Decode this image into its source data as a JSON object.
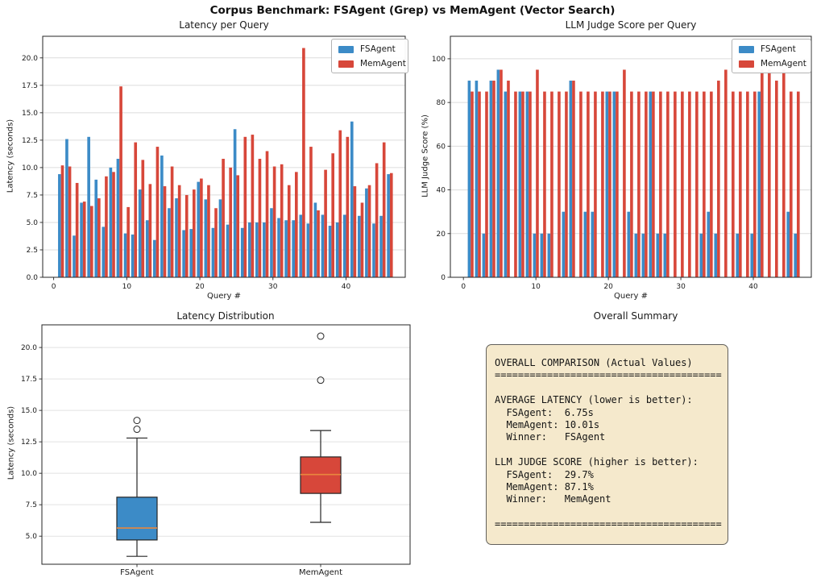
{
  "suptitle": "Corpus Benchmark: FSAgent (Grep) vs MemAgent (Vector Search)",
  "colors": {
    "fsagent": "#3c8bc7",
    "memagent": "#d7473a",
    "median_line": "#e8873d",
    "grid": "#dcdcdc",
    "spine": "#262626",
    "summary_bg": "#f5e9cc",
    "summary_border": "#62605c"
  },
  "legend": {
    "fsagent": "FSAgent",
    "memagent": "MemAgent"
  },
  "chart_data": [
    {
      "id": "latency-per-query",
      "type": "bar",
      "title": "Latency per Query",
      "xlabel": "Query #",
      "ylabel": "Latency (seconds)",
      "ylim": [
        0,
        21.97
      ],
      "yticks": [
        0,
        2.5,
        5,
        7.5,
        10,
        12.5,
        15,
        17.5,
        20
      ],
      "ytick_labels": [
        "0.0",
        "2.5",
        "5.0",
        "7.5",
        "10.0",
        "12.5",
        "15.0",
        "17.5",
        "20.0"
      ],
      "xticks": [
        0,
        10,
        20,
        30,
        40
      ],
      "xtick_labels": [
        "0",
        "10",
        "20",
        "30",
        "40"
      ],
      "x_start": 1,
      "grid": true,
      "legend_position": "upper right",
      "series": [
        {
          "name": "FSAgent",
          "color": "#3c8bc7",
          "values": [
            9.4,
            12.6,
            3.8,
            6.8,
            12.8,
            8.9,
            4.6,
            10.0,
            10.8,
            4.0,
            3.9,
            8.0,
            5.2,
            3.4,
            11.1,
            6.3,
            7.2,
            4.3,
            4.4,
            8.7,
            7.1,
            4.5,
            7.1,
            4.8,
            13.5,
            4.5,
            5.0,
            5.0,
            5.0,
            6.3,
            5.4,
            5.2,
            5.2,
            5.7,
            4.9,
            6.8,
            5.7,
            4.7,
            5.0,
            5.7,
            14.2,
            5.6,
            8.1,
            4.9,
            5.6,
            9.4
          ]
        },
        {
          "name": "MemAgent",
          "color": "#d7473a",
          "values": [
            10.2,
            10.1,
            8.6,
            6.9,
            6.5,
            7.2,
            9.2,
            9.6,
            17.4,
            6.4,
            12.3,
            10.7,
            8.5,
            11.9,
            8.3,
            10.1,
            8.4,
            7.5,
            8.0,
            9.0,
            8.4,
            6.3,
            10.8,
            10.0,
            9.3,
            12.8,
            13.0,
            10.8,
            11.5,
            10.1,
            10.3,
            8.4,
            9.6,
            20.9,
            11.9,
            6.1,
            9.8,
            11.3,
            13.4,
            12.8,
            8.3,
            6.8,
            8.4,
            10.4,
            12.3,
            9.5
          ]
        }
      ]
    },
    {
      "id": "llm-judge-score-per-query",
      "type": "bar",
      "title": "LLM Judge Score per Query",
      "xlabel": "Query #",
      "ylabel": "LLM Judge Score (%)",
      "ylim": [
        0,
        110.3
      ],
      "yticks": [
        0,
        20,
        40,
        60,
        80,
        100
      ],
      "ytick_labels": [
        "0",
        "20",
        "40",
        "60",
        "80",
        "100"
      ],
      "xticks": [
        0,
        10,
        20,
        30,
        40
      ],
      "xtick_labels": [
        "0",
        "10",
        "20",
        "30",
        "40"
      ],
      "x_start": 1,
      "grid": true,
      "legend_position": "upper right",
      "series": [
        {
          "name": "FSAgent",
          "color": "#3c8bc7",
          "values": [
            90,
            90,
            20,
            90,
            95,
            85,
            0,
            85,
            85,
            20,
            20,
            20,
            0,
            30,
            90,
            0,
            30,
            30,
            0,
            85,
            85,
            0,
            30,
            20,
            20,
            85,
            20,
            20,
            0,
            0,
            0,
            0,
            20,
            30,
            20,
            0,
            0,
            20,
            0,
            20,
            85,
            0,
            0,
            0,
            30,
            20
          ]
        },
        {
          "name": "MemAgent",
          "color": "#d7473a",
          "values": [
            85,
            85,
            85,
            90,
            95,
            90,
            85,
            85,
            85,
            95,
            85,
            85,
            85,
            85,
            90,
            85,
            85,
            85,
            85,
            85,
            85,
            95,
            85,
            85,
            85,
            85,
            85,
            85,
            85,
            85,
            85,
            85,
            85,
            85,
            90,
            95,
            85,
            85,
            85,
            85,
            95,
            95,
            90,
            95,
            85,
            85
          ]
        }
      ]
    },
    {
      "id": "latency-distribution",
      "type": "boxplot",
      "title": "Latency Distribution",
      "ylabel": "Latency (seconds)",
      "ylim": [
        2.77,
        21.8
      ],
      "yticks": [
        5,
        7.5,
        10,
        12.5,
        15,
        17.5,
        20
      ],
      "ytick_labels": [
        "5.0",
        "7.5",
        "10.0",
        "12.5",
        "15.0",
        "17.5",
        "20.0"
      ],
      "grid": true,
      "median_color": "#e8873d",
      "groups": [
        {
          "label": "FSAgent",
          "color": "#3c8bc7",
          "whisker_low": 3.4,
          "q1": 4.7,
          "median": 5.65,
          "q3": 8.1,
          "whisker_high": 12.8,
          "outliers": [
            13.5,
            14.2
          ]
        },
        {
          "label": "MemAgent",
          "color": "#d7473a",
          "whisker_low": 6.1,
          "q1": 8.4,
          "median": 9.9,
          "q3": 11.3,
          "whisker_high": 13.4,
          "outliers": [
            17.4,
            20.9
          ]
        }
      ]
    },
    {
      "id": "overall-summary",
      "type": "text",
      "title": "Overall Summary",
      "lines": [
        "OVERALL COMPARISON (Actual Values)",
        "=======================================",
        "",
        "AVERAGE LATENCY (lower is better):",
        "  FSAgent:  6.75s",
        "  MemAgent: 10.01s",
        "  Winner:   FSAgent",
        "",
        "LLM JUDGE SCORE (higher is better):",
        "  FSAgent:  29.7%",
        "  MemAgent: 87.1%",
        "  Winner:   MemAgent",
        "",
        "======================================="
      ]
    }
  ]
}
